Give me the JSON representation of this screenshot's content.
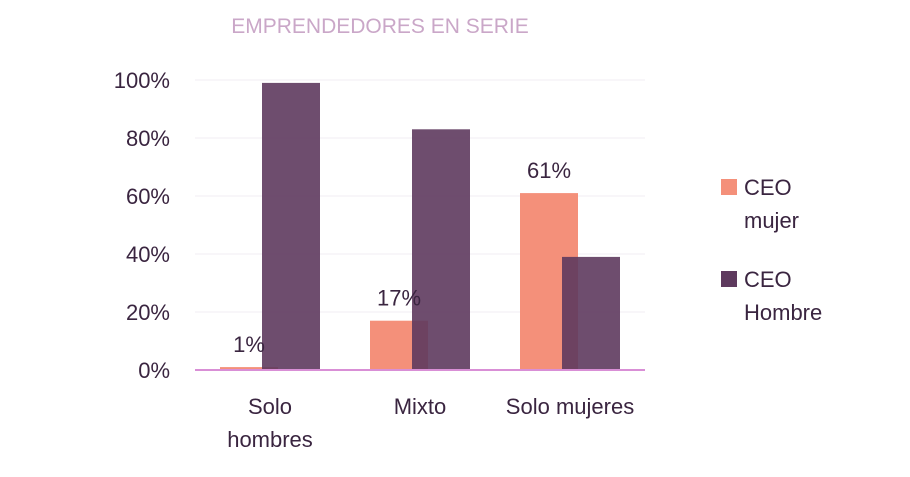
{
  "chart_data": {
    "type": "bar",
    "title": "EMPRENDEDORES EN SERIE",
    "categories": [
      [
        "Solo",
        "hombres"
      ],
      [
        "Mixto"
      ],
      [
        "Solo mujeres"
      ]
    ],
    "series": [
      {
        "name": [
          "CEO",
          "mujer"
        ],
        "values": [
          1,
          17,
          61
        ],
        "labels": [
          "1%",
          "17%",
          "61%"
        ],
        "color": "#f4907a"
      },
      {
        "name": [
          "CEO",
          "Hombre"
        ],
        "values": [
          99,
          83,
          39
        ],
        "labels": [
          "",
          "",
          ""
        ],
        "color": "#5e3a5e"
      }
    ],
    "ylim": [
      0,
      100
    ],
    "yticks": [
      "0%",
      "20%",
      "40%",
      "60%",
      "80%",
      "100%"
    ],
    "ytick_values": [
      0,
      20,
      40,
      60,
      80,
      100
    ],
    "grid": true,
    "legend_position": "right",
    "colors": {
      "title": "#caa7c8",
      "axis": "#d98fd6",
      "grid": "#f1eef3",
      "text": "#3a2540"
    }
  }
}
